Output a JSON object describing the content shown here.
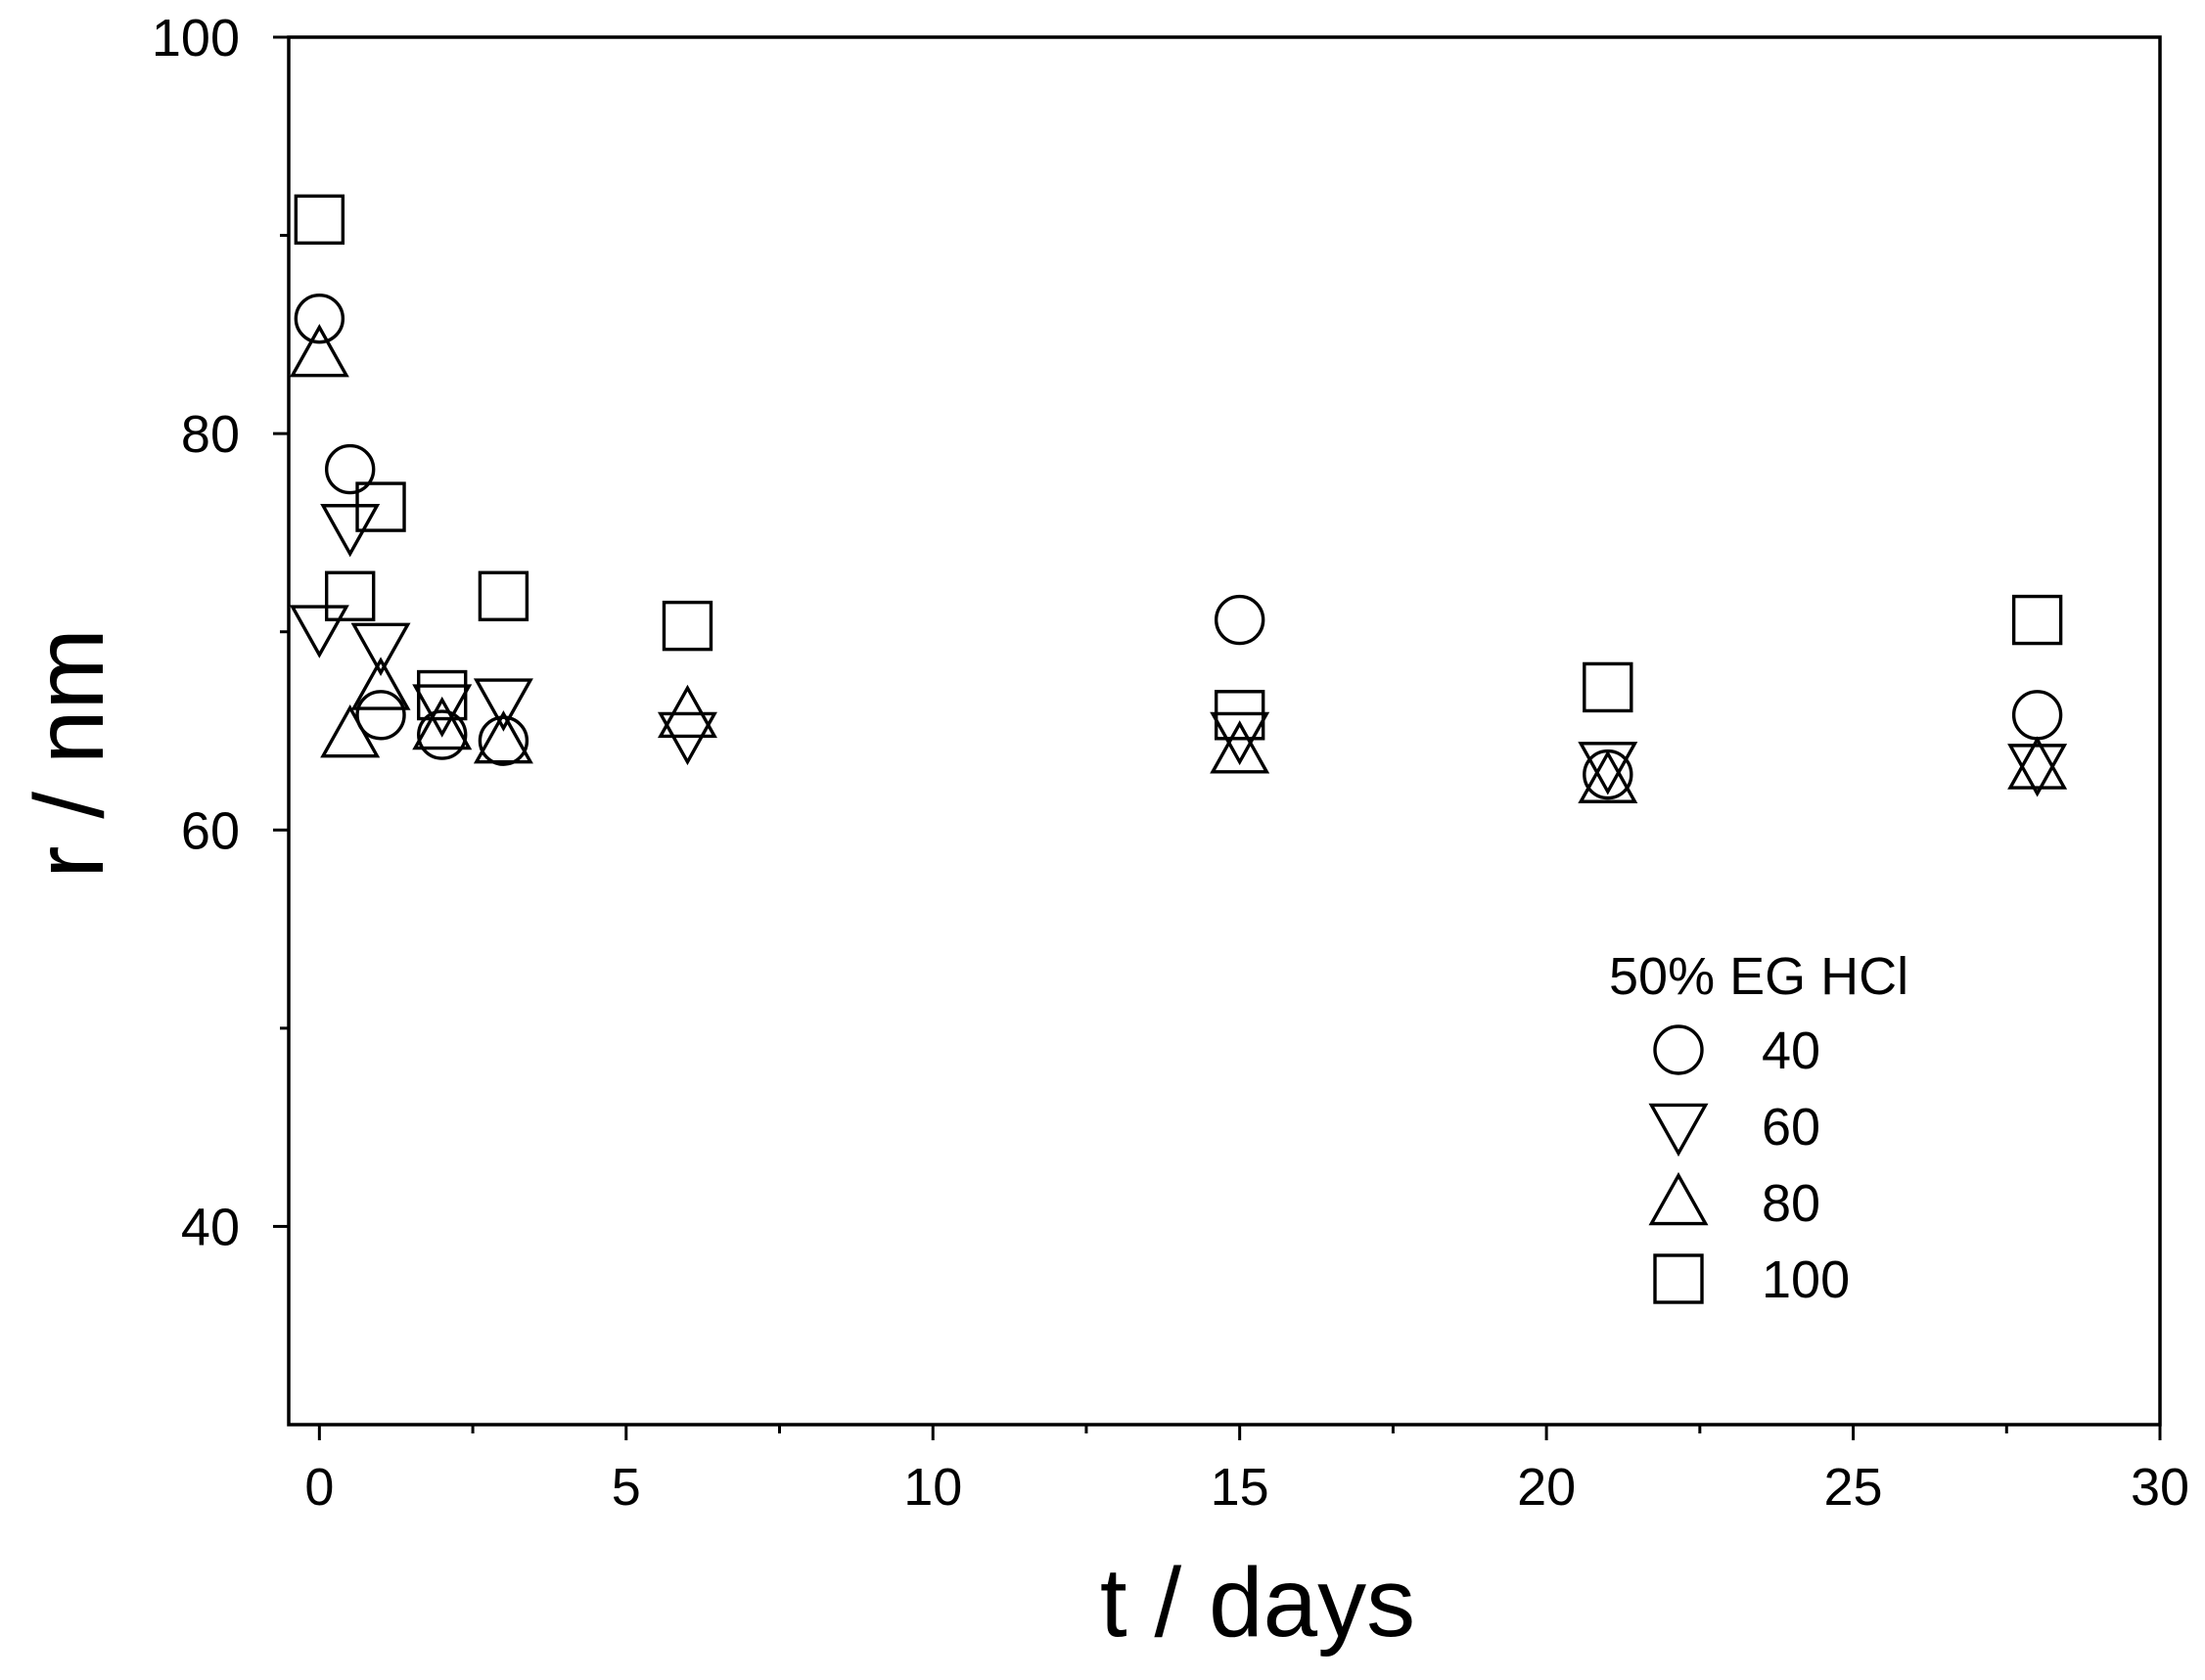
{
  "chart_data": {
    "type": "scatter",
    "title": "",
    "xlabel": "t / days",
    "ylabel": "r / nm",
    "xlim": [
      -0.5,
      30
    ],
    "ylim": [
      30,
      100
    ],
    "x_ticks": [
      0,
      5,
      10,
      15,
      20,
      25,
      30
    ],
    "x_minor_ticks": [
      2.5,
      7.5,
      12.5,
      17.5,
      22.5,
      27.5
    ],
    "y_ticks": [
      40,
      60,
      80,
      100
    ],
    "y_minor_ticks": [
      50,
      70,
      90
    ],
    "grid": false,
    "legend": {
      "title": "50% EG HCl",
      "placement": "lower-right"
    },
    "series": [
      {
        "name": "40",
        "marker": "circle",
        "x": [
          0,
          0.5,
          1,
          2,
          3,
          15,
          21,
          28
        ],
        "y": [
          85.8,
          78.2,
          65.8,
          64.8,
          64.5,
          70.6,
          62.8,
          65.8
        ]
      },
      {
        "name": "60",
        "marker": "triangle-down",
        "x": [
          0,
          0.5,
          1,
          2,
          3,
          6,
          15,
          21,
          28
        ],
        "y": [
          70.2,
          75.3,
          69.3,
          66.2,
          66.5,
          64.8,
          64.8,
          63.3,
          63.2
        ]
      },
      {
        "name": "80",
        "marker": "triangle-up",
        "x": [
          0,
          0.5,
          1,
          2,
          3,
          6,
          15,
          21,
          28
        ],
        "y": [
          84.0,
          64.8,
          67.2,
          65.2,
          64.5,
          65.8,
          64.0,
          62.5,
          63.2
        ]
      },
      {
        "name": "100",
        "marker": "square",
        "x": [
          0,
          0.5,
          1,
          2,
          3,
          6,
          15,
          21,
          28
        ],
        "y": [
          90.8,
          71.8,
          76.3,
          66.8,
          71.8,
          70.3,
          65.8,
          67.2,
          70.6
        ]
      }
    ]
  }
}
